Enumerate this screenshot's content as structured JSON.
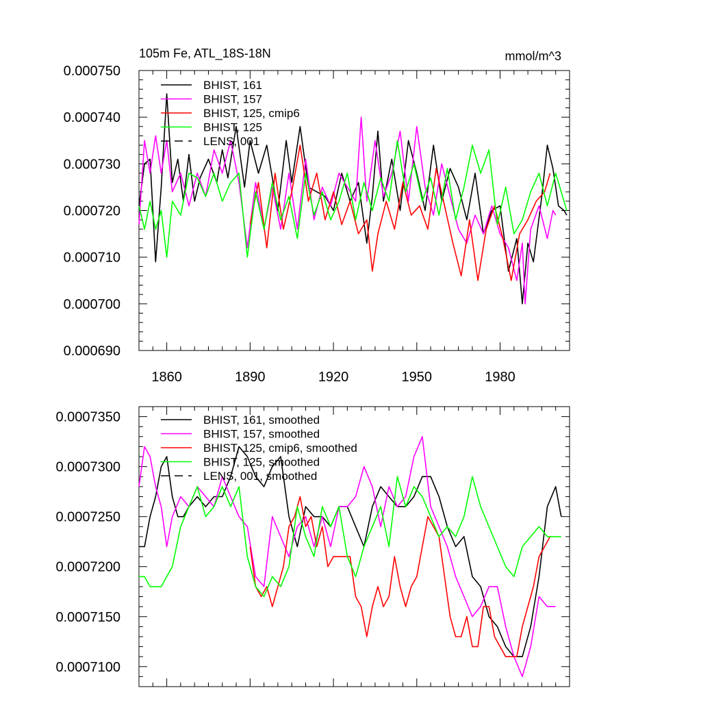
{
  "chart_data": [
    {
      "type": "line",
      "title_left": "105m Fe, ATL_18S-18N",
      "title_right": "mmol/m^3",
      "xlim": [
        1850,
        2005
      ],
      "ylim": [
        0.00069,
        0.00075
      ],
      "x_ticks": [
        1860,
        1890,
        1920,
        1950,
        1980
      ],
      "y_ticks": [
        "0.000690",
        "0.000700",
        "0.000710",
        "0.000720",
        "0.000730",
        "0.000740",
        "0.000750"
      ],
      "series": [
        {
          "name": "BHIST, 161",
          "color": "#000000",
          "x": [
            1850,
            1852,
            1854,
            1855,
            1856,
            1858,
            1860,
            1862,
            1864,
            1866,
            1868,
            1870,
            1872,
            1875,
            1878,
            1880,
            1882,
            1885,
            1888,
            1890,
            1893,
            1896,
            1900,
            1903,
            1905,
            1908,
            1911,
            1914,
            1917,
            1920,
            1923,
            1926,
            1929,
            1932,
            1934,
            1936,
            1938,
            1941,
            1944,
            1947,
            1950,
            1953,
            1956,
            1959,
            1962,
            1965,
            1968,
            1971,
            1974,
            1977,
            1980,
            1983,
            1986,
            1988,
            1990,
            1992,
            1995,
            1997,
            1999,
            2001,
            2003,
            2004
          ],
          "values": [
            0.000721,
            0.00073,
            0.000731,
            0.00072,
            0.000709,
            0.000725,
            0.000745,
            0.000726,
            0.000731,
            0.000722,
            0.000732,
            0.000722,
            0.000727,
            0.000731,
            0.000726,
            0.000733,
            0.000727,
            0.000738,
            0.000725,
            0.000735,
            0.000728,
            0.000734,
            0.00072,
            0.000735,
            0.000726,
            0.000738,
            0.000725,
            0.000724,
            0.000723,
            0.00072,
            0.000728,
            0.000722,
            0.000726,
            0.000713,
            0.000723,
            0.000737,
            0.000722,
            0.000731,
            0.00072,
            0.000735,
            0.000728,
            0.00072,
            0.000734,
            0.000722,
            0.000729,
            0.000725,
            0.000718,
            0.000728,
            0.000715,
            0.00072,
            0.000721,
            0.000707,
            0.000714,
            0.0007,
            0.000713,
            0.000709,
            0.000723,
            0.000734,
            0.000729,
            0.000721,
            0.00072,
            0.000719
          ]
        },
        {
          "name": "BHIST, 157",
          "color": "#ff00ff",
          "x": [
            1850,
            1852,
            1854,
            1856,
            1858,
            1860,
            1862,
            1865,
            1868,
            1871,
            1874,
            1877,
            1880,
            1883,
            1886,
            1889,
            1892,
            1895,
            1898,
            1901,
            1904,
            1907,
            1910,
            1913,
            1916,
            1919,
            1922,
            1925,
            1928,
            1930,
            1932,
            1935,
            1938,
            1941,
            1944,
            1947,
            1950,
            1953,
            1956,
            1959,
            1962,
            1965,
            1968,
            1971,
            1974,
            1977,
            1980,
            1983,
            1986,
            1988,
            1989,
            1991,
            1994,
            1997,
            1999,
            2000
          ],
          "values": [
            0.000717,
            0.000735,
            0.000728,
            0.000736,
            0.000728,
            0.000735,
            0.000724,
            0.000728,
            0.000721,
            0.000728,
            0.000723,
            0.000733,
            0.000728,
            0.000735,
            0.000726,
            0.000712,
            0.000726,
            0.000716,
            0.000725,
            0.000716,
            0.000728,
            0.000716,
            0.000731,
            0.000718,
            0.000725,
            0.000721,
            0.000728,
            0.000725,
            0.000722,
            0.00074,
            0.000722,
            0.000735,
            0.000723,
            0.000728,
            0.000737,
            0.000722,
            0.000738,
            0.000725,
            0.000719,
            0.00073,
            0.000723,
            0.000716,
            0.000713,
            0.000719,
            0.000715,
            0.000721,
            0.000715,
            0.000712,
            0.000705,
            0.000713,
            0.0007,
            0.000716,
            0.000721,
            0.000714,
            0.00072,
            0.000719
          ]
        },
        {
          "name": "BHIST, 125, cmip6",
          "color": "#ff0000",
          "x": [
            1890,
            1893,
            1896,
            1899,
            1902,
            1905,
            1908,
            1911,
            1914,
            1917,
            1920,
            1923,
            1926,
            1929,
            1932,
            1934,
            1936,
            1939,
            1942,
            1945,
            1948,
            1951,
            1954,
            1957,
            1960,
            1963,
            1966,
            1969,
            1972,
            1975,
            1978,
            1981,
            1984,
            1987,
            1990,
            1993,
            1996,
            1998
          ],
          "values": [
            0.000717,
            0.000726,
            0.000712,
            0.000728,
            0.000716,
            0.000724,
            0.000734,
            0.000722,
            0.000728,
            0.000718,
            0.000724,
            0.000717,
            0.000722,
            0.000715,
            0.000718,
            0.000707,
            0.000715,
            0.000722,
            0.000716,
            0.000726,
            0.000719,
            0.000721,
            0.000716,
            0.000729,
            0.000721,
            0.000713,
            0.000706,
            0.000718,
            0.000705,
            0.000716,
            0.000721,
            0.000714,
            0.000705,
            0.000715,
            0.000718,
            0.000722,
            0.000724,
            0.000728
          ]
        },
        {
          "name": "BHIST, 125",
          "color": "#00ff00",
          "x": [
            1850,
            1852,
            1854,
            1856,
            1858,
            1860,
            1862,
            1865,
            1868,
            1871,
            1874,
            1877,
            1880,
            1883,
            1886,
            1889,
            1892,
            1895,
            1898,
            1901,
            1904,
            1907,
            1910,
            1913,
            1916,
            1919,
            1922,
            1925,
            1928,
            1931,
            1934,
            1937,
            1940,
            1943,
            1946,
            1949,
            1952,
            1955,
            1958,
            1961,
            1964,
            1967,
            1970,
            1973,
            1976,
            1979,
            1982,
            1985,
            1988,
            1991,
            1994,
            1997,
            2000,
            2003,
            2004
          ],
          "values": [
            0.000721,
            0.000716,
            0.000722,
            0.000716,
            0.00072,
            0.00071,
            0.000722,
            0.000719,
            0.000728,
            0.000727,
            0.000723,
            0.000728,
            0.000722,
            0.000726,
            0.000728,
            0.00071,
            0.000724,
            0.000716,
            0.000726,
            0.000718,
            0.000723,
            0.000714,
            0.000728,
            0.000719,
            0.000724,
            0.000718,
            0.000722,
            0.000728,
            0.000718,
            0.000726,
            0.00072,
            0.000727,
            0.000722,
            0.000735,
            0.000724,
            0.00073,
            0.000722,
            0.000727,
            0.000719,
            0.000729,
            0.000718,
            0.000725,
            0.000734,
            0.000728,
            0.000733,
            0.000717,
            0.000725,
            0.000715,
            0.000718,
            0.000724,
            0.000728,
            0.000721,
            0.000728,
            0.000722,
            0.00072
          ]
        },
        {
          "name": "LENS, 001",
          "color": "#000000",
          "dashed": true,
          "x": [],
          "values": []
        }
      ]
    },
    {
      "type": "line",
      "xlim": [
        1850,
        2005
      ],
      "ylim": [
        0.000708,
        0.000736
      ],
      "x_ticks": [
        1860,
        1890,
        1920,
        1950,
        1980
      ],
      "y_ticks": [
        "0.0007100",
        "0.0007150",
        "0.0007200",
        "0.0007250",
        "0.0007300",
        "0.0007350"
      ],
      "series": [
        {
          "name": "BHIST, 161, smoothed",
          "color": "#000000",
          "x": [
            1850,
            1852,
            1854,
            1856,
            1858,
            1860,
            1862,
            1864,
            1866,
            1868,
            1871,
            1874,
            1877,
            1880,
            1883,
            1886,
            1889,
            1892,
            1895,
            1898,
            1901,
            1904,
            1907,
            1910,
            1913,
            1916,
            1919,
            1922,
            1925,
            1928,
            1931,
            1934,
            1937,
            1940,
            1943,
            1946,
            1949,
            1952,
            1955,
            1958,
            1961,
            1964,
            1967,
            1970,
            1973,
            1976,
            1979,
            1982,
            1985,
            1988,
            1991,
            1994,
            1997,
            2000,
            2002
          ],
          "values": [
            0.000722,
            0.000722,
            0.000725,
            0.000727,
            0.00073,
            0.000731,
            0.000727,
            0.000725,
            0.000725,
            0.000726,
            0.000727,
            0.000726,
            0.000727,
            0.000727,
            0.000729,
            0.000732,
            0.000731,
            0.000729,
            0.000728,
            0.00073,
            0.000731,
            0.000725,
            0.000722,
            0.000726,
            0.000725,
            0.000725,
            0.000724,
            0.000726,
            0.000726,
            0.000724,
            0.000722,
            0.000726,
            0.000728,
            0.000727,
            0.000726,
            0.000726,
            0.000727,
            0.000729,
            0.000729,
            0.000727,
            0.000724,
            0.000722,
            0.000723,
            0.000719,
            0.000718,
            0.000715,
            0.000714,
            0.000712,
            0.000711,
            0.000711,
            0.000714,
            0.000719,
            0.000726,
            0.000728,
            0.000725
          ]
        },
        {
          "name": "BHIST, 157, smoothed",
          "color": "#ff00ff",
          "x": [
            1850,
            1852,
            1854,
            1856,
            1858,
            1860,
            1862,
            1865,
            1868,
            1871,
            1874,
            1877,
            1880,
            1883,
            1886,
            1889,
            1892,
            1895,
            1898,
            1901,
            1904,
            1907,
            1910,
            1913,
            1916,
            1919,
            1922,
            1925,
            1928,
            1931,
            1934,
            1937,
            1940,
            1943,
            1946,
            1949,
            1952,
            1955,
            1958,
            1961,
            1964,
            1967,
            1970,
            1973,
            1976,
            1979,
            1982,
            1985,
            1988,
            1991,
            1994,
            1997,
            2000
          ],
          "values": [
            0.000728,
            0.000732,
            0.000731,
            0.000728,
            0.000726,
            0.000722,
            0.000725,
            0.000727,
            0.000726,
            0.000728,
            0.000727,
            0.000726,
            0.000729,
            0.000727,
            0.000725,
            0.000724,
            0.000719,
            0.000718,
            0.000725,
            0.000723,
            0.000721,
            0.000724,
            0.000725,
            0.000722,
            0.000725,
            0.000722,
            0.000726,
            0.000726,
            0.000727,
            0.00073,
            0.000728,
            0.000724,
            0.000728,
            0.000726,
            0.000727,
            0.000731,
            0.000733,
            0.000726,
            0.000724,
            0.000722,
            0.000719,
            0.000717,
            0.000715,
            0.000716,
            0.000718,
            0.000718,
            0.000714,
            0.000711,
            0.000709,
            0.000712,
            0.000717,
            0.000716,
            0.000716
          ]
        },
        {
          "name": "BHIST, 125, cmip6, smoothed",
          "color": "#ff0000",
          "x": [
            1890,
            1892,
            1894,
            1896,
            1898,
            1900,
            1902,
            1904,
            1906,
            1908,
            1910,
            1912,
            1914,
            1916,
            1918,
            1920,
            1922,
            1924,
            1926,
            1928,
            1930,
            1932,
            1934,
            1936,
            1938,
            1940,
            1942,
            1944,
            1946,
            1948,
            1950,
            1952,
            1954,
            1956,
            1958,
            1960,
            1962,
            1964,
            1966,
            1968,
            1970,
            1972,
            1974,
            1976,
            1978,
            1980,
            1982,
            1984,
            1986,
            1988,
            1990,
            1992,
            1994,
            1996,
            1998
          ],
          "values": [
            0.000722,
            0.000718,
            0.000717,
            0.000718,
            0.000716,
            0.000718,
            0.00072,
            0.000724,
            0.000725,
            0.000727,
            0.000724,
            0.000725,
            0.000722,
            0.000724,
            0.00072,
            0.000721,
            0.000721,
            0.000721,
            0.000721,
            0.000717,
            0.000716,
            0.000713,
            0.000716,
            0.000718,
            0.000716,
            0.000717,
            0.000721,
            0.000718,
            0.000716,
            0.000718,
            0.000719,
            0.000722,
            0.000725,
            0.000724,
            0.000723,
            0.000719,
            0.000715,
            0.000713,
            0.000713,
            0.000715,
            0.000712,
            0.000712,
            0.000716,
            0.000716,
            0.000713,
            0.000712,
            0.000711,
            0.000711,
            0.000711,
            0.000714,
            0.000716,
            0.000718,
            0.000721,
            0.000722,
            0.000723
          ]
        },
        {
          "name": "BHIST, 125, smoothed",
          "color": "#00ff00",
          "x": [
            1850,
            1852,
            1854,
            1856,
            1858,
            1860,
            1862,
            1865,
            1868,
            1871,
            1874,
            1877,
            1880,
            1883,
            1886,
            1889,
            1892,
            1895,
            1898,
            1901,
            1904,
            1907,
            1910,
            1913,
            1916,
            1919,
            1922,
            1925,
            1928,
            1931,
            1934,
            1937,
            1940,
            1943,
            1946,
            1949,
            1952,
            1955,
            1958,
            1961,
            1964,
            1967,
            1970,
            1973,
            1976,
            1979,
            1982,
            1985,
            1988,
            1991,
            1994,
            1997,
            2000,
            2002
          ],
          "values": [
            0.000719,
            0.000719,
            0.000718,
            0.000718,
            0.000718,
            0.000719,
            0.00072,
            0.000724,
            0.000726,
            0.000728,
            0.000725,
            0.000726,
            0.000728,
            0.000726,
            0.000728,
            0.000721,
            0.000718,
            0.000717,
            0.000719,
            0.000718,
            0.00072,
            0.000726,
            0.000723,
            0.000721,
            0.000726,
            0.000724,
            0.000726,
            0.000721,
            0.000719,
            0.000722,
            0.000724,
            0.000726,
            0.000722,
            0.000729,
            0.000726,
            0.000728,
            0.000727,
            0.000725,
            0.000723,
            0.000724,
            0.000723,
            0.000725,
            0.000729,
            0.000726,
            0.000724,
            0.000722,
            0.00072,
            0.000719,
            0.000722,
            0.000723,
            0.000724,
            0.000723,
            0.000723,
            0.000723
          ]
        },
        {
          "name": "LENS, 001, smoothed",
          "color": "#000000",
          "dashed": true,
          "x": [],
          "values": []
        }
      ]
    }
  ]
}
